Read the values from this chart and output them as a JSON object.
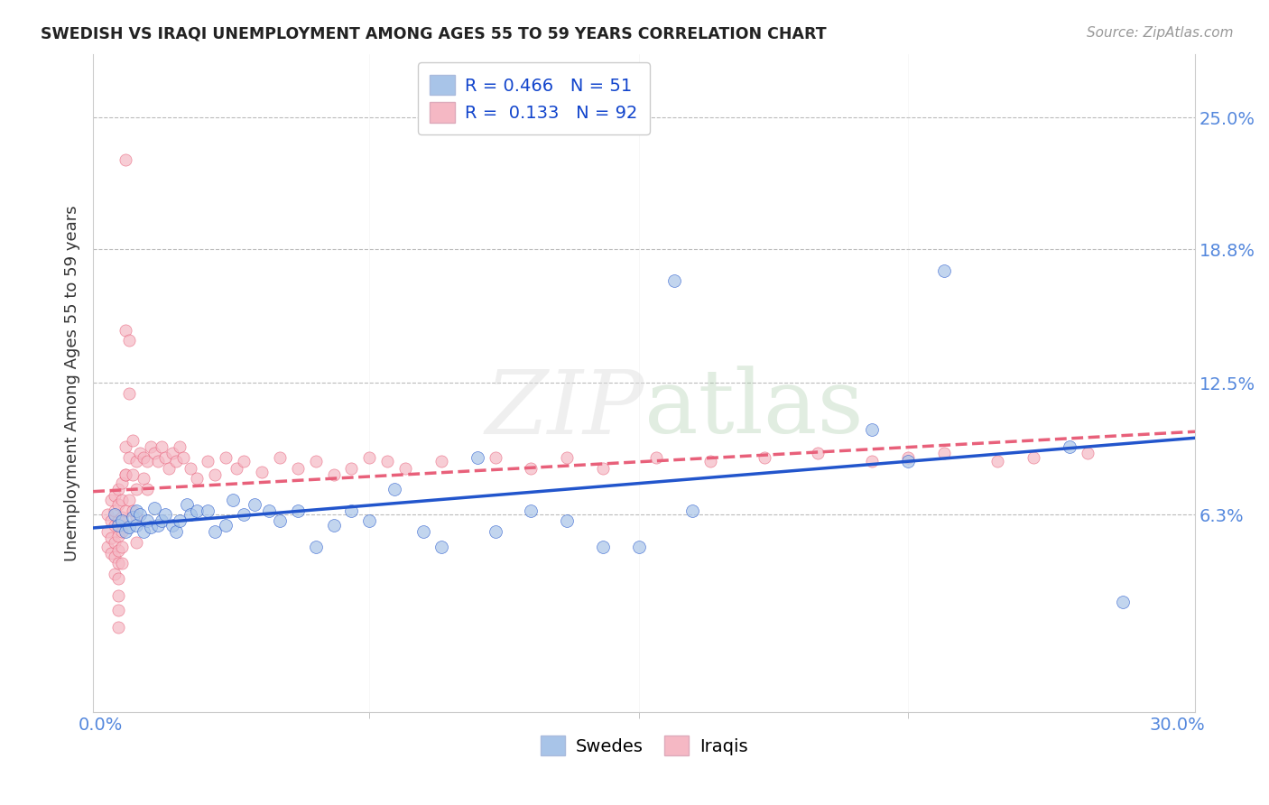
{
  "title": "SWEDISH VS IRAQI UNEMPLOYMENT AMONG AGES 55 TO 59 YEARS CORRELATION CHART",
  "source": "Source: ZipAtlas.com",
  "ylabel": "Unemployment Among Ages 55 to 59 years",
  "ytick_labels": [
    "25.0%",
    "18.8%",
    "12.5%",
    "6.3%"
  ],
  "ytick_values": [
    0.25,
    0.188,
    0.125,
    0.063
  ],
  "xlim": [
    -0.002,
    0.305
  ],
  "ylim": [
    -0.03,
    0.28
  ],
  "legend_r_blue": "0.466",
  "legend_n_blue": "51",
  "legend_r_pink": "0.133",
  "legend_n_pink": "92",
  "blue_color": "#A8C4E8",
  "pink_color": "#F5B8C4",
  "line_blue": "#2255CC",
  "line_pink": "#E8607A",
  "background_color": "#FFFFFF",
  "grid_color": "#BBBBBB",
  "swedes_label": "Swedes",
  "iraqis_label": "Iraqis",
  "tick_color": "#5588DD",
  "swedes_x": [
    0.004,
    0.005,
    0.006,
    0.007,
    0.008,
    0.009,
    0.01,
    0.01,
    0.011,
    0.012,
    0.013,
    0.014,
    0.015,
    0.016,
    0.017,
    0.018,
    0.02,
    0.021,
    0.022,
    0.024,
    0.025,
    0.027,
    0.03,
    0.032,
    0.035,
    0.037,
    0.04,
    0.043,
    0.047,
    0.05,
    0.055,
    0.06,
    0.065,
    0.07,
    0.075,
    0.082,
    0.09,
    0.095,
    0.105,
    0.11,
    0.12,
    0.13,
    0.14,
    0.15,
    0.16,
    0.165,
    0.215,
    0.225,
    0.235,
    0.27,
    0.285
  ],
  "swedes_y": [
    0.063,
    0.058,
    0.06,
    0.055,
    0.057,
    0.062,
    0.065,
    0.058,
    0.063,
    0.055,
    0.06,
    0.057,
    0.066,
    0.058,
    0.06,
    0.063,
    0.058,
    0.055,
    0.06,
    0.068,
    0.063,
    0.065,
    0.065,
    0.055,
    0.058,
    0.07,
    0.063,
    0.068,
    0.065,
    0.06,
    0.065,
    0.048,
    0.058,
    0.065,
    0.06,
    0.075,
    0.055,
    0.048,
    0.09,
    0.055,
    0.065,
    0.06,
    0.048,
    0.048,
    0.173,
    0.065,
    0.103,
    0.088,
    0.178,
    0.095,
    0.022
  ],
  "iraqis_x": [
    0.002,
    0.002,
    0.002,
    0.003,
    0.003,
    0.003,
    0.003,
    0.004,
    0.004,
    0.004,
    0.004,
    0.004,
    0.004,
    0.005,
    0.005,
    0.005,
    0.005,
    0.005,
    0.005,
    0.005,
    0.005,
    0.005,
    0.005,
    0.006,
    0.006,
    0.006,
    0.006,
    0.006,
    0.006,
    0.007,
    0.007,
    0.007,
    0.007,
    0.007,
    0.007,
    0.008,
    0.008,
    0.008,
    0.008,
    0.009,
    0.009,
    0.009,
    0.01,
    0.01,
    0.01,
    0.01,
    0.011,
    0.012,
    0.012,
    0.013,
    0.013,
    0.014,
    0.015,
    0.016,
    0.017,
    0.018,
    0.019,
    0.02,
    0.021,
    0.022,
    0.023,
    0.025,
    0.027,
    0.03,
    0.032,
    0.035,
    0.038,
    0.04,
    0.045,
    0.05,
    0.055,
    0.06,
    0.065,
    0.07,
    0.075,
    0.08,
    0.085,
    0.095,
    0.11,
    0.12,
    0.13,
    0.14,
    0.155,
    0.17,
    0.185,
    0.2,
    0.215,
    0.225,
    0.235,
    0.25,
    0.26,
    0.275
  ],
  "iraqis_y": [
    0.063,
    0.055,
    0.048,
    0.07,
    0.06,
    0.052,
    0.045,
    0.072,
    0.065,
    0.058,
    0.05,
    0.043,
    0.035,
    0.075,
    0.068,
    0.06,
    0.053,
    0.046,
    0.04,
    0.033,
    0.025,
    0.018,
    0.01,
    0.078,
    0.07,
    0.062,
    0.055,
    0.048,
    0.04,
    0.23,
    0.15,
    0.082,
    0.065,
    0.095,
    0.082,
    0.145,
    0.12,
    0.09,
    0.07,
    0.098,
    0.082,
    0.065,
    0.088,
    0.075,
    0.062,
    0.05,
    0.092,
    0.09,
    0.08,
    0.088,
    0.075,
    0.095,
    0.092,
    0.088,
    0.095,
    0.09,
    0.085,
    0.092,
    0.088,
    0.095,
    0.09,
    0.085,
    0.08,
    0.088,
    0.082,
    0.09,
    0.085,
    0.088,
    0.083,
    0.09,
    0.085,
    0.088,
    0.082,
    0.085,
    0.09,
    0.088,
    0.085,
    0.088,
    0.09,
    0.085,
    0.09,
    0.085,
    0.09,
    0.088,
    0.09,
    0.092,
    0.088,
    0.09,
    0.092,
    0.088,
    0.09,
    0.092
  ]
}
